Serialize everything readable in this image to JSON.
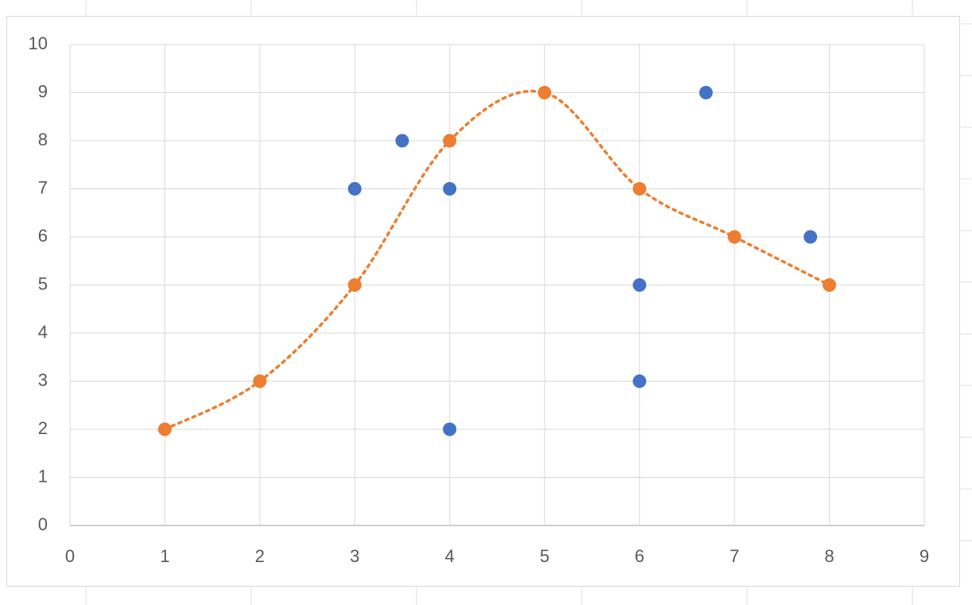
{
  "chart_data": {
    "type": "scatter",
    "xlim": [
      0,
      9
    ],
    "xticks": [
      0,
      1,
      2,
      3,
      4,
      5,
      6,
      7,
      8,
      9
    ],
    "ylim": [
      0,
      10
    ],
    "yticks": [
      0,
      1,
      2,
      3,
      4,
      5,
      6,
      7,
      8,
      9,
      10
    ],
    "grid": true,
    "series": [
      {
        "color": "#4472c4",
        "x": [
          3,
          3.5,
          4,
          4,
          6,
          6,
          6.7,
          7.8
        ],
        "values": [
          7,
          8,
          7,
          2,
          5,
          3,
          9,
          6
        ]
      },
      {
        "color": "#ed7d31",
        "x": [
          1,
          2,
          3,
          4,
          5,
          6,
          7,
          8
        ],
        "values": [
          2,
          3,
          5,
          8,
          9,
          7,
          6,
          5
        ],
        "line_style": "dotted",
        "smooth": true
      }
    ]
  }
}
